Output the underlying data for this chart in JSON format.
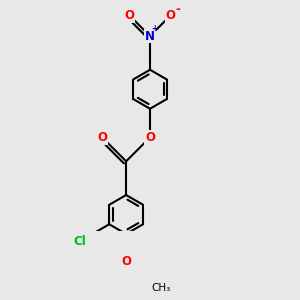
{
  "background_color": "#e8e8e8",
  "bond_color": "#000000",
  "bond_width": 1.5,
  "atom_colors": {
    "O": "#ff0000",
    "N": "#0000cc",
    "Cl": "#00bb00",
    "C": "#000000"
  },
  "font_size": 8.5,
  "figsize": [
    3.0,
    3.0
  ],
  "dpi": 100,
  "ring_r": 0.55,
  "scale": 0.55
}
